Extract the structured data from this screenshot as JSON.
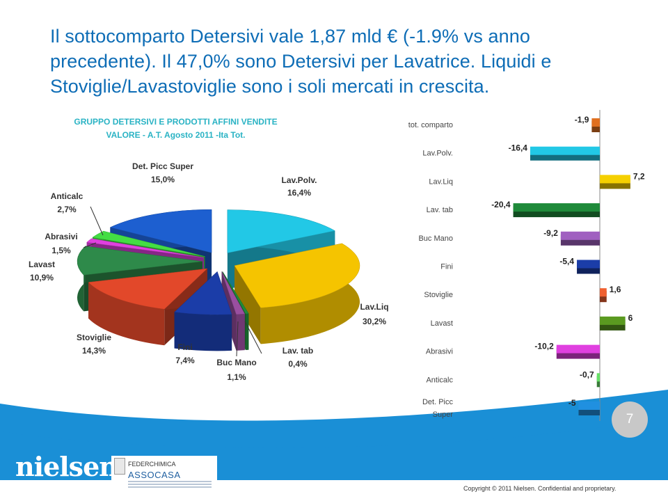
{
  "title": "Il sottocomparto Detersivi vale 1,87 mld € (-1.9% vs anno precedente). Il 47,0% sono Detersivi per Lavatrice. Liquidi e Stoviglie/Lavastoviglie sono i soli mercati in crescita.",
  "pie_heading": [
    "GRUPPO DETERSIVI  E PRODOTTI AFFINI VENDITE",
    "VALORE  - A.T. Agosto 2011 -Ita Tot."
  ],
  "page_number": "7",
  "logos": {
    "nielsen": "nielsen",
    "federchimica": "FEDERCHIMICA",
    "assocasa": "ASSOCASA"
  },
  "copyright": "Copyright © 2011 Nielsen. Confidential and proprietary.",
  "colors": {
    "title": "#0e6db6",
    "heading": "#2ab3c4",
    "footer_blue": "#1a8fd6"
  },
  "chart_data": [
    {
      "type": "pie",
      "title_lines": [
        "GRUPPO DETERSIVI  E PRODOTTI AFFINI VENDITE",
        "VALORE  - A.T. Agosto 2011 -Ita Tot."
      ],
      "slices": [
        {
          "name": "Lav.Polv.",
          "value": "16,4%",
          "v": 16.4,
          "color": "#22c8e6"
        },
        {
          "name": "Lav.Liq",
          "value": "30,2%",
          "v": 30.2,
          "color": "#f5c400"
        },
        {
          "name": "Lav. tab",
          "value": "0,4%",
          "v": 0.4,
          "color": "#1f8a3a"
        },
        {
          "name": "Buc Mano",
          "value": "1,1%",
          "v": 1.1,
          "color": "#9a4fa0"
        },
        {
          "name": "Fini",
          "value": "7,4%",
          "v": 7.4,
          "color": "#1b3da8"
        },
        {
          "name": "Stoviglie",
          "value": "14,3%",
          "v": 14.3,
          "color": "#e2482a"
        },
        {
          "name": "Lavast",
          "value": "10,9%",
          "v": 10.9,
          "color": "#2e8a4a"
        },
        {
          "name": "Abrasivi",
          "value": "1,5%",
          "v": 1.5,
          "color": "#e040e0"
        },
        {
          "name": "Anticalc",
          "value": "2,7%",
          "v": 2.7,
          "color": "#44dd44"
        },
        {
          "name": "Det. Picc Super",
          "value": "15,0%",
          "v": 15.0,
          "color": "#1d5fd0"
        }
      ]
    },
    {
      "type": "bar",
      "orientation": "horizontal",
      "categories": [
        "tot. comparto",
        "Lav.Polv.",
        "Lav.Liq",
        "Lav. tab",
        "Buc Mano",
        "Fini",
        "Stoviglie",
        "Lavast",
        "Abrasivi",
        "Anticalc",
        "Det. Picc Super"
      ],
      "values": [
        -1.9,
        -16.4,
        7.2,
        -20.4,
        -9.2,
        -5.4,
        1.6,
        6,
        -10.2,
        -0.7,
        -5
      ],
      "labels": [
        "-1,9",
        "-16,4",
        "7,2",
        "-20,4",
        "-9,2",
        "-5,4",
        "1,6",
        "6",
        "-10,2",
        "-0,7",
        "-5"
      ],
      "colors": [
        "#e07020",
        "#22c8e6",
        "#f5d000",
        "#1f8a3a",
        "#a060c0",
        "#1b3da8",
        "#f06030",
        "#5a9a20",
        "#e040e0",
        "#66e066",
        "#2090e0"
      ]
    }
  ]
}
